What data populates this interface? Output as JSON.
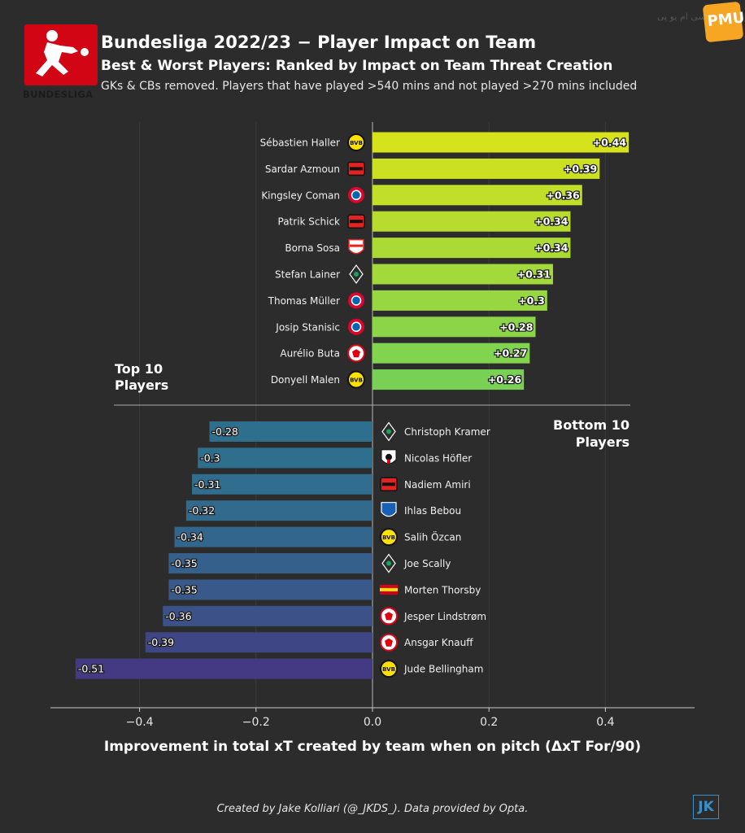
{
  "header": {
    "logo_text": "BUNDESLIGA",
    "title": "Bundesliga 2022/23 − Player Impact on Team",
    "subtitle": "Best & Worst Players: Ranked by Impact on Team Threat Creation",
    "note": "GKs & CBs removed. Players that have played  >540 mins and not played >270 mins included"
  },
  "watermark": {
    "text": "PMUP",
    "secondary_text": "سی ام یو پی"
  },
  "footer": {
    "credit": "Created by Jake Kolliari (@_JKDS_). Data provided by Opta.",
    "monogram": "JK"
  },
  "colors": {
    "background": "#2c2c2c",
    "top_bar_high": "#d6e21c",
    "top_bar_low": "#78d154",
    "bottom_bar_low": "#2f6f8e",
    "bottom_bar_high": "#443a83"
  },
  "chart_data": {
    "type": "bar",
    "orientation": "horizontal",
    "xlabel": "Improvement in total xT created by team when on pitch (ΔxT For/90)",
    "xlim": [
      -0.55,
      0.55
    ],
    "xticks": [
      "−0.4",
      "−0.2",
      "0.0",
      "0.2",
      "0.4"
    ],
    "xtick_values": [
      -0.4,
      -0.2,
      0.0,
      0.2,
      0.4
    ],
    "grid": true,
    "top_group": {
      "label": "Top 10 Players",
      "players": [
        {
          "name": "Sébastien Haller",
          "club": "Borussia Dortmund",
          "value": 0.44,
          "label": "+0.44"
        },
        {
          "name": "Sardar Azmoun",
          "club": "Bayer Leverkusen",
          "value": 0.39,
          "label": "+0.39"
        },
        {
          "name": "Kingsley Coman",
          "club": "Bayern Munich",
          "value": 0.36,
          "label": "+0.36"
        },
        {
          "name": "Patrik Schick",
          "club": "Bayer Leverkusen",
          "value": 0.34,
          "label": "+0.34"
        },
        {
          "name": "Borna Sosa",
          "club": "VfB Stuttgart",
          "value": 0.34,
          "label": "+0.34"
        },
        {
          "name": "Stefan Lainer",
          "club": "Borussia Mönchengladbach",
          "value": 0.31,
          "label": "+0.31"
        },
        {
          "name": "Thomas Müller",
          "club": "Bayern Munich",
          "value": 0.3,
          "label": "+0.3"
        },
        {
          "name": "Josip Stanisic",
          "club": "Bayern Munich",
          "value": 0.28,
          "label": "+0.28"
        },
        {
          "name": "Aurélio Buta",
          "club": "Eintracht Frankfurt",
          "value": 0.27,
          "label": "+0.27"
        },
        {
          "name": "Donyell Malen",
          "club": "Borussia Dortmund",
          "value": 0.26,
          "label": "+0.26"
        }
      ]
    },
    "bottom_group": {
      "label": "Bottom 10 Players",
      "players": [
        {
          "name": "Christoph Kramer",
          "club": "Borussia Mönchengladbach",
          "value": -0.28,
          "label": "-0.28"
        },
        {
          "name": "Nicolas Höfler",
          "club": "SC Freiburg",
          "value": -0.3,
          "label": "-0.3"
        },
        {
          "name": "Nadiem Amiri",
          "club": "Bayer Leverkusen",
          "value": -0.31,
          "label": "-0.31"
        },
        {
          "name": "Ihlas Bebou",
          "club": "TSG Hoffenheim",
          "value": -0.32,
          "label": "-0.32"
        },
        {
          "name": "Salih Özcan",
          "club": "Borussia Dortmund",
          "value": -0.34,
          "label": "-0.34"
        },
        {
          "name": "Joe Scally",
          "club": "Borussia Mönchengladbach",
          "value": -0.35,
          "label": "-0.35"
        },
        {
          "name": "Morten Thorsby",
          "club": "Union Berlin",
          "value": -0.35,
          "label": "-0.35"
        },
        {
          "name": "Jesper Lindstrøm",
          "club": "Eintracht Frankfurt",
          "value": -0.36,
          "label": "-0.36"
        },
        {
          "name": "Ansgar Knauff",
          "club": "Eintracht Frankfurt",
          "value": -0.39,
          "label": "-0.39"
        },
        {
          "name": "Jude Bellingham",
          "club": "Borussia Dortmund",
          "value": -0.51,
          "label": "-0.51"
        }
      ]
    }
  }
}
